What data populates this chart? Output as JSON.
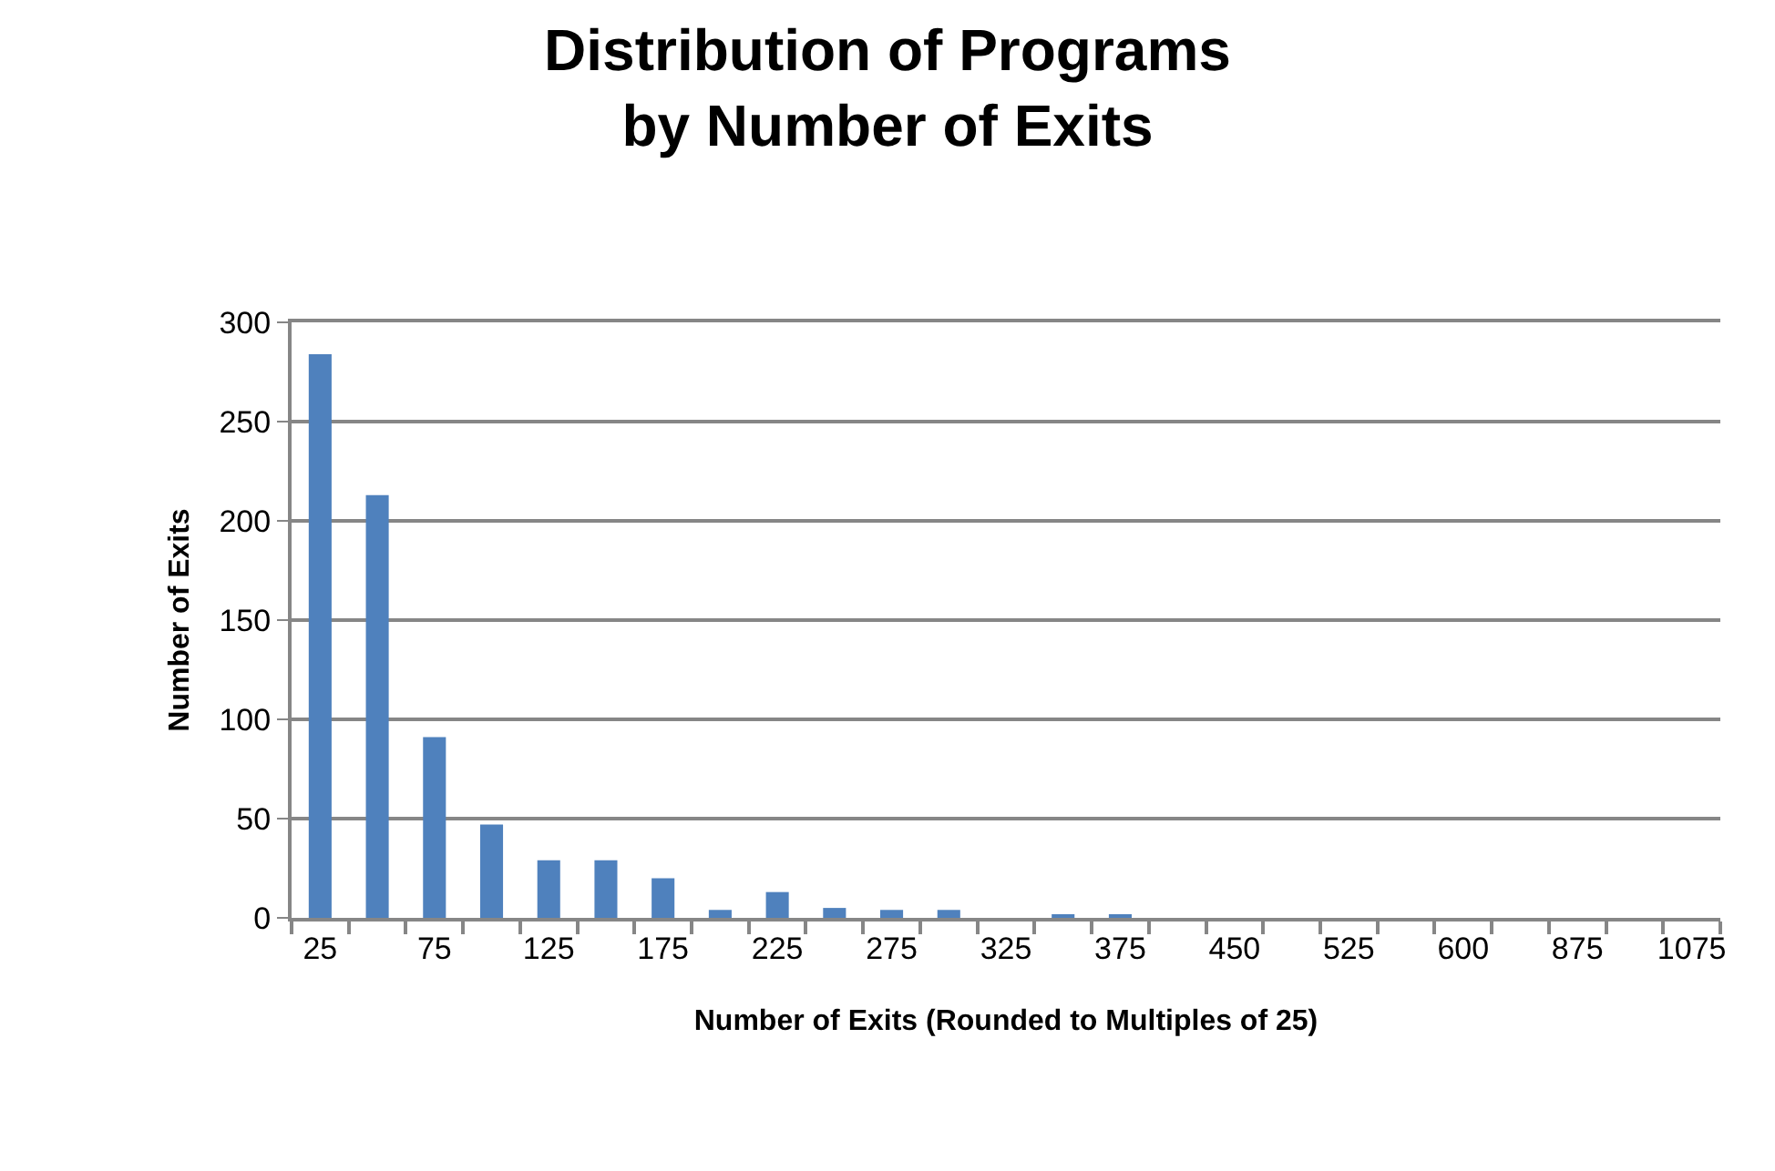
{
  "chart_data": {
    "type": "bar",
    "title": "Distribution of Programs\nby Number of Exits",
    "xlabel": "Number of Exits (Rounded to Multiples of 25)",
    "ylabel": "Number of Exits",
    "categories": [
      "25",
      null,
      "75",
      null,
      "125",
      null,
      "175",
      null,
      "225",
      null,
      "275",
      null,
      "325",
      null,
      "375",
      null,
      "450",
      null,
      "525",
      null,
      "600",
      null,
      "875",
      null,
      "1075"
    ],
    "values": [
      284,
      213,
      91,
      47,
      29,
      29,
      20,
      4,
      13,
      5,
      4,
      4,
      0,
      1,
      1,
      0,
      0,
      0,
      0,
      0,
      0,
      0,
      0,
      0,
      0
    ],
    "color": "#4f81bd",
    "ylim": [
      0,
      300
    ],
    "yticks": [
      0,
      50,
      100,
      150,
      200,
      250,
      300
    ],
    "grid": "y"
  }
}
